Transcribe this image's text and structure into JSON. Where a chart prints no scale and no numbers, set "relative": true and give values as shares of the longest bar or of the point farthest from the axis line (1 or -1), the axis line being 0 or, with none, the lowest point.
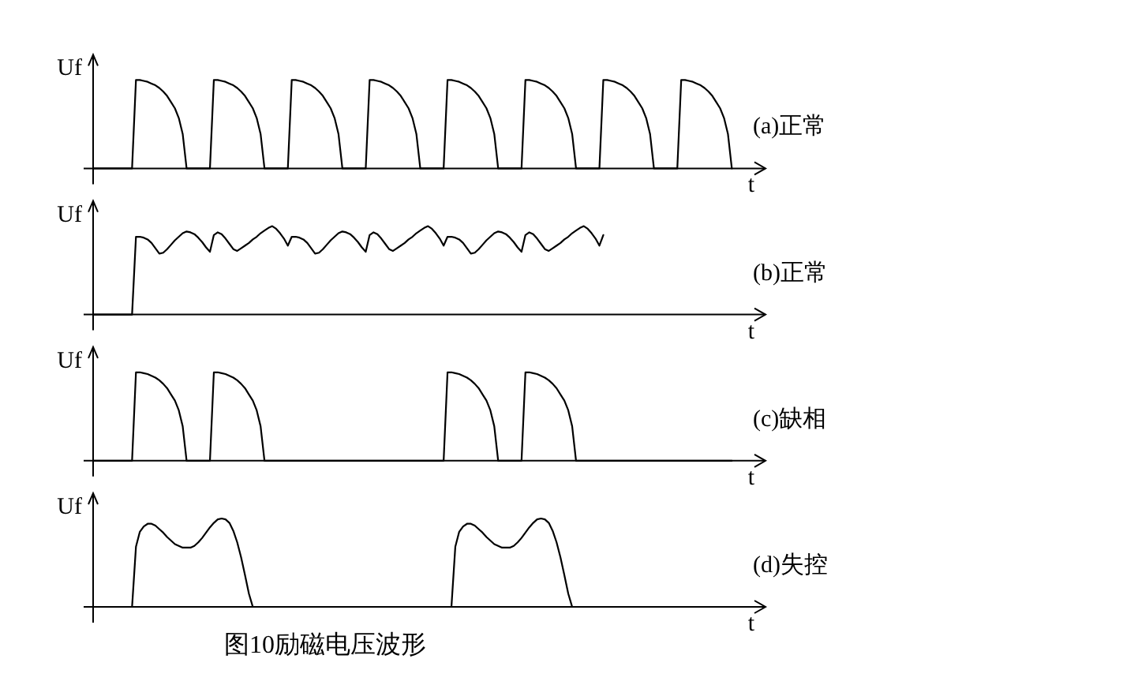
{
  "chart_data": [
    {
      "type": "line",
      "relative": true,
      "title": "(a)正常",
      "ylabel": "Uf",
      "xlabel": "t",
      "color": "#000000",
      "categories": [
        null,
        null,
        null,
        null,
        null,
        null,
        null,
        null,
        null,
        null,
        null,
        null,
        null,
        null,
        null,
        null,
        null,
        null,
        null,
        null,
        null,
        null,
        null,
        null,
        null,
        null,
        null,
        null,
        null,
        null,
        null,
        null,
        null,
        null,
        null,
        null,
        null,
        null,
        null,
        null,
        null,
        null,
        null,
        null,
        null,
        null,
        null,
        null,
        null,
        null,
        null,
        null,
        null,
        null,
        null,
        null,
        null,
        null,
        null,
        null,
        null,
        null,
        null,
        null,
        null,
        null,
        null,
        null,
        null,
        null,
        null,
        null,
        null,
        null,
        null,
        null,
        null,
        null,
        null,
        null,
        null,
        null,
        null,
        null,
        null,
        null,
        null,
        null,
        null,
        null,
        null,
        null,
        null,
        null,
        null,
        null,
        null,
        null,
        null,
        null,
        null,
        null,
        null,
        null,
        null,
        null,
        null,
        null,
        null,
        null,
        null,
        null,
        null,
        null,
        null,
        null,
        null,
        null,
        null,
        null,
        null,
        null,
        null,
        null,
        null,
        null,
        null,
        null,
        null,
        null,
        null,
        null,
        null,
        null,
        null,
        null,
        null,
        null,
        null,
        null,
        null,
        null,
        null,
        null,
        null,
        null,
        null,
        null,
        null,
        null,
        null,
        null,
        null,
        null,
        null,
        null,
        null,
        null,
        null,
        null,
        null,
        null,
        null,
        null,
        null,
        null,
        null,
        null,
        null,
        null
      ],
      "values": [
        0,
        0,
        0,
        0,
        0,
        0,
        0,
        0,
        0,
        0,
        0,
        1,
        1,
        0.99,
        0.98,
        0.96,
        0.94,
        0.91,
        0.87,
        0.82,
        0.75,
        0.68,
        0.57,
        0.39,
        0,
        0,
        0,
        0,
        0,
        0,
        0,
        1,
        1,
        0.99,
        0.98,
        0.96,
        0.94,
        0.91,
        0.87,
        0.82,
        0.75,
        0.68,
        0.57,
        0.39,
        0,
        0,
        0,
        0,
        0,
        0,
        0,
        1,
        1,
        0.99,
        0.98,
        0.96,
        0.94,
        0.91,
        0.87,
        0.82,
        0.75,
        0.68,
        0.57,
        0.39,
        0,
        0,
        0,
        0,
        0,
        0,
        0,
        1,
        1,
        0.99,
        0.98,
        0.96,
        0.94,
        0.91,
        0.87,
        0.82,
        0.75,
        0.68,
        0.57,
        0.39,
        0,
        0,
        0,
        0,
        0,
        0,
        0,
        1,
        1,
        0.99,
        0.98,
        0.96,
        0.94,
        0.91,
        0.87,
        0.82,
        0.75,
        0.68,
        0.57,
        0.39,
        0,
        0,
        0,
        0,
        0,
        0,
        0,
        1,
        1,
        0.99,
        0.98,
        0.96,
        0.94,
        0.91,
        0.87,
        0.82,
        0.75,
        0.68,
        0.57,
        0.39,
        0,
        0,
        0,
        0,
        0,
        0,
        0,
        1,
        1,
        0.99,
        0.98,
        0.96,
        0.94,
        0.91,
        0.87,
        0.82,
        0.75,
        0.68,
        0.57,
        0.39,
        0,
        0,
        0,
        0,
        0,
        0,
        0,
        1,
        1,
        0.99,
        0.98,
        0.96,
        0.94,
        0.91,
        0.87,
        0.82,
        0.75,
        0.68,
        0.57,
        0.39,
        0,
        null,
        null,
        null,
        null,
        null
      ]
    },
    {
      "type": "line",
      "relative": true,
      "title": "(b)正常",
      "ylabel": "Uf",
      "xlabel": "t",
      "color": "#000000",
      "categories": [
        null,
        null,
        null,
        null,
        null,
        null,
        null,
        null,
        null,
        null,
        null,
        null,
        null,
        null,
        null,
        null,
        null,
        null,
        null,
        null,
        null,
        null,
        null,
        null,
        null,
        null,
        null,
        null,
        null,
        null,
        null,
        null,
        null,
        null,
        null,
        null,
        null,
        null,
        null,
        null,
        null,
        null,
        null,
        null,
        null,
        null,
        null,
        null,
        null,
        null,
        null,
        null,
        null,
        null,
        null,
        null,
        null,
        null,
        null,
        null,
        null,
        null,
        null,
        null,
        null,
        null,
        null,
        null,
        null,
        null,
        null,
        null,
        null,
        null,
        null,
        null,
        null,
        null,
        null,
        null,
        null,
        null,
        null,
        null,
        null,
        null,
        null,
        null,
        null,
        null,
        null,
        null,
        null,
        null,
        null,
        null,
        null,
        null,
        null,
        null,
        null,
        null,
        null,
        null,
        null,
        null,
        null,
        null,
        null,
        null,
        null,
        null,
        null,
        null,
        null,
        null,
        null,
        null,
        null,
        null,
        null,
        null,
        null,
        null,
        null,
        null,
        null,
        null,
        null,
        null,
        null,
        null,
        null,
        null,
        null,
        null,
        null,
        null,
        null,
        null,
        null,
        null,
        null,
        null,
        null,
        null,
        null,
        null,
        null,
        null,
        null,
        null,
        null,
        null,
        null,
        null,
        null,
        null,
        null,
        null,
        null,
        null,
        null,
        null,
        null,
        null,
        null,
        null,
        null,
        null
      ],
      "values": [
        0,
        0,
        0,
        0,
        0,
        0,
        0,
        0,
        0,
        0,
        0,
        0.88,
        0.88,
        0.87,
        0.85,
        0.81,
        0.75,
        0.69,
        0.7,
        0.74,
        0.79,
        0.84,
        0.88,
        0.92,
        0.94,
        0.93,
        0.91,
        0.87,
        0.82,
        0.76,
        0.71,
        0.9,
        0.93,
        0.91,
        0.86,
        0.8,
        0.74,
        0.72,
        0.75,
        0.78,
        0.81,
        0.85,
        0.88,
        0.92,
        0.95,
        0.98,
        1,
        0.97,
        0.92,
        0.86,
        0.78,
        0.88,
        0.88,
        0.87,
        0.85,
        0.81,
        0.75,
        0.69,
        0.7,
        0.74,
        0.79,
        0.84,
        0.88,
        0.92,
        0.94,
        0.93,
        0.91,
        0.87,
        0.82,
        0.76,
        0.71,
        0.9,
        0.93,
        0.91,
        0.86,
        0.8,
        0.74,
        0.72,
        0.75,
        0.78,
        0.81,
        0.85,
        0.88,
        0.92,
        0.95,
        0.98,
        1,
        0.97,
        0.92,
        0.86,
        0.78,
        0.88,
        0.88,
        0.87,
        0.85,
        0.81,
        0.75,
        0.69,
        0.7,
        0.74,
        0.79,
        0.84,
        0.88,
        0.92,
        0.94,
        0.93,
        0.91,
        0.87,
        0.82,
        0.76,
        0.71,
        0.9,
        0.93,
        0.91,
        0.86,
        0.8,
        0.74,
        0.72,
        0.75,
        0.78,
        0.81,
        0.85,
        0.88,
        0.92,
        0.95,
        0.98,
        1,
        0.97,
        0.92,
        0.86,
        0.78,
        0.9,
        null,
        null,
        null,
        null,
        null,
        null,
        null,
        null,
        null,
        null,
        null,
        null,
        null,
        null,
        null,
        null,
        null,
        null,
        null,
        null,
        null,
        null,
        null,
        null,
        null,
        null,
        null,
        null,
        null,
        null,
        null,
        null,
        null,
        null,
        null,
        null,
        null,
        null
      ]
    },
    {
      "type": "line",
      "relative": true,
      "title": "(c)缺相",
      "ylabel": "Uf",
      "xlabel": "t",
      "color": "#000000",
      "categories": [
        null,
        null,
        null,
        null,
        null,
        null,
        null,
        null,
        null,
        null,
        null,
        null,
        null,
        null,
        null,
        null,
        null,
        null,
        null,
        null,
        null,
        null,
        null,
        null,
        null,
        null,
        null,
        null,
        null,
        null,
        null,
        null,
        null,
        null,
        null,
        null,
        null,
        null,
        null,
        null,
        null,
        null,
        null,
        null,
        null,
        null,
        null,
        null,
        null,
        null,
        null,
        null,
        null,
        null,
        null,
        null,
        null,
        null,
        null,
        null,
        null,
        null,
        null,
        null,
        null,
        null,
        null,
        null,
        null,
        null,
        null,
        null,
        null,
        null,
        null,
        null,
        null,
        null,
        null,
        null,
        null,
        null,
        null,
        null,
        null,
        null,
        null,
        null,
        null,
        null,
        null,
        null,
        null,
        null,
        null,
        null,
        null,
        null,
        null,
        null,
        null,
        null,
        null,
        null,
        null,
        null,
        null,
        null,
        null,
        null,
        null,
        null,
        null,
        null,
        null,
        null,
        null,
        null,
        null,
        null,
        null,
        null,
        null,
        null,
        null,
        null,
        null,
        null,
        null,
        null,
        null,
        null,
        null,
        null,
        null,
        null,
        null,
        null,
        null,
        null,
        null,
        null,
        null,
        null,
        null,
        null,
        null,
        null,
        null,
        null,
        null,
        null,
        null,
        null,
        null,
        null,
        null,
        null,
        null,
        null,
        null,
        null,
        null,
        null,
        null,
        null,
        null,
        null,
        null,
        null
      ],
      "values": [
        0,
        0,
        0,
        0,
        0,
        0,
        0,
        0,
        0,
        0,
        0,
        1,
        1,
        0.99,
        0.98,
        0.96,
        0.94,
        0.91,
        0.87,
        0.82,
        0.75,
        0.68,
        0.57,
        0.39,
        0,
        0,
        0,
        0,
        0,
        0,
        0,
        1,
        1,
        0.99,
        0.98,
        0.96,
        0.94,
        0.91,
        0.87,
        0.82,
        0.75,
        0.68,
        0.57,
        0.39,
        0,
        0,
        0,
        0,
        0,
        0,
        0,
        0,
        0,
        0,
        0,
        0,
        0,
        0,
        0,
        0,
        0,
        0,
        0,
        0,
        0,
        0,
        0,
        0,
        0,
        0,
        0,
        0,
        0,
        0,
        0,
        0,
        0,
        0,
        0,
        0,
        0,
        0,
        0,
        0,
        0,
        0,
        0,
        0,
        0,
        0,
        0,
        1,
        1,
        0.99,
        0.98,
        0.96,
        0.94,
        0.91,
        0.87,
        0.82,
        0.75,
        0.68,
        0.57,
        0.39,
        0,
        0,
        0,
        0,
        0,
        0,
        0,
        1,
        1,
        0.99,
        0.98,
        0.96,
        0.94,
        0.91,
        0.87,
        0.82,
        0.75,
        0.68,
        0.57,
        0.39,
        0,
        0,
        0,
        0,
        0,
        0,
        0,
        0,
        0,
        0,
        0,
        0,
        0,
        0,
        0,
        0,
        0,
        0,
        0,
        0,
        0,
        0,
        0,
        0,
        0,
        0,
        0,
        0,
        0,
        0,
        0,
        0,
        0,
        0,
        0,
        0,
        0,
        0,
        0,
        0,
        0,
        null,
        null,
        null,
        null,
        null
      ]
    },
    {
      "type": "line",
      "relative": true,
      "title": "(d)失控",
      "ylabel": "Uf",
      "xlabel": "t",
      "color": "#000000",
      "annotations": [
        "图10励磁电压波形"
      ],
      "categories": [
        null,
        null,
        null,
        null,
        null,
        null,
        null,
        null,
        null,
        null,
        null,
        null,
        null,
        null,
        null,
        null,
        null,
        null,
        null,
        null,
        null,
        null,
        null,
        null,
        null,
        null,
        null,
        null,
        null,
        null,
        null,
        null,
        null,
        null,
        null,
        null,
        null,
        null,
        null,
        null,
        null,
        null,
        null,
        null,
        null,
        null,
        null,
        null,
        null,
        null,
        null,
        null,
        null,
        null,
        null,
        null,
        null,
        null,
        null,
        null,
        null,
        null,
        null,
        null,
        null,
        null,
        null,
        null,
        null,
        null,
        null,
        null,
        null,
        null,
        null,
        null,
        null,
        null,
        null,
        null,
        null,
        null,
        null,
        null,
        null,
        null,
        null,
        null,
        null,
        null,
        null,
        null,
        null,
        null,
        null,
        null,
        null,
        null,
        null,
        null,
        null,
        null,
        null,
        null,
        null,
        null,
        null,
        null,
        null,
        null,
        null,
        null,
        null,
        null,
        null,
        null,
        null,
        null,
        null,
        null,
        null,
        null,
        null,
        null,
        null,
        null,
        null,
        null,
        null,
        null,
        null,
        null,
        null,
        null,
        null,
        null,
        null,
        null,
        null,
        null,
        null,
        null,
        null,
        null,
        null,
        null,
        null,
        null,
        null,
        null,
        null,
        null,
        null,
        null,
        null,
        null,
        null,
        null,
        null,
        null,
        null,
        null,
        null,
        null,
        null,
        null,
        null,
        null,
        null,
        null
      ],
      "values": [
        0,
        0,
        0,
        0,
        0,
        0,
        0,
        0,
        0,
        0,
        0,
        0.68,
        0.85,
        0.91,
        0.94,
        0.94,
        0.92,
        0.88,
        0.84,
        0.79,
        0.75,
        0.71,
        0.69,
        0.67,
        0.67,
        0.67,
        0.69,
        0.73,
        0.78,
        0.84,
        0.9,
        0.95,
        0.99,
        1,
        0.99,
        0.95,
        0.86,
        0.73,
        0.56,
        0.36,
        0.15,
        0,
        0,
        0,
        0,
        0,
        0,
        0,
        0,
        0,
        0,
        0,
        0,
        0,
        0,
        0,
        0,
        0,
        0,
        0,
        0,
        0,
        0,
        0,
        0,
        0,
        0,
        0,
        0,
        0,
        0,
        0,
        0,
        0,
        0,
        0,
        0,
        0,
        0,
        0,
        0,
        0,
        0,
        0,
        0,
        0,
        0,
        0,
        0,
        0,
        0,
        0,
        0,
        0.68,
        0.85,
        0.91,
        0.94,
        0.94,
        0.92,
        0.88,
        0.84,
        0.79,
        0.75,
        0.71,
        0.69,
        0.67,
        0.67,
        0.67,
        0.69,
        0.73,
        0.78,
        0.84,
        0.9,
        0.95,
        0.99,
        1,
        0.99,
        0.95,
        0.86,
        0.73,
        0.56,
        0.36,
        0.15,
        0,
        0,
        0,
        0,
        0,
        0,
        0,
        0,
        0,
        0,
        0,
        0,
        0,
        0,
        0,
        0,
        0,
        0,
        0,
        0,
        0,
        0,
        0,
        0,
        0,
        0,
        0,
        0,
        0,
        0,
        0,
        0,
        0,
        0,
        0,
        0,
        0,
        0,
        0,
        0,
        0,
        0,
        null,
        null,
        null,
        null,
        null
      ]
    }
  ]
}
